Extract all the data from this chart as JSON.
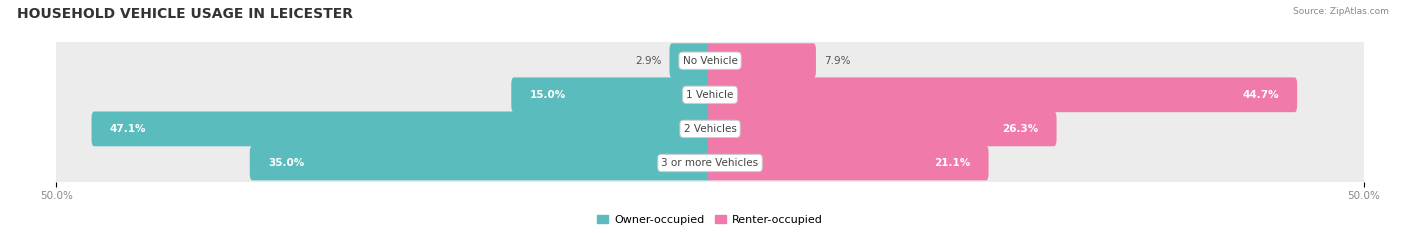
{
  "title": "HOUSEHOLD VEHICLE USAGE IN LEICESTER",
  "source": "Source: ZipAtlas.com",
  "categories": [
    "No Vehicle",
    "1 Vehicle",
    "2 Vehicles",
    "3 or more Vehicles"
  ],
  "owner_values": [
    2.9,
    15.0,
    47.1,
    35.0
  ],
  "renter_values": [
    7.9,
    44.7,
    26.3,
    21.1
  ],
  "owner_color": "#5bbcbe",
  "renter_color": "#f07aaa",
  "bar_bg_color": "#ececec",
  "axis_max": 50.0,
  "legend_owner": "Owner-occupied",
  "legend_renter": "Renter-occupied",
  "title_fontsize": 10,
  "label_fontsize": 7.5,
  "category_fontsize": 7.5,
  "inside_threshold": 10
}
